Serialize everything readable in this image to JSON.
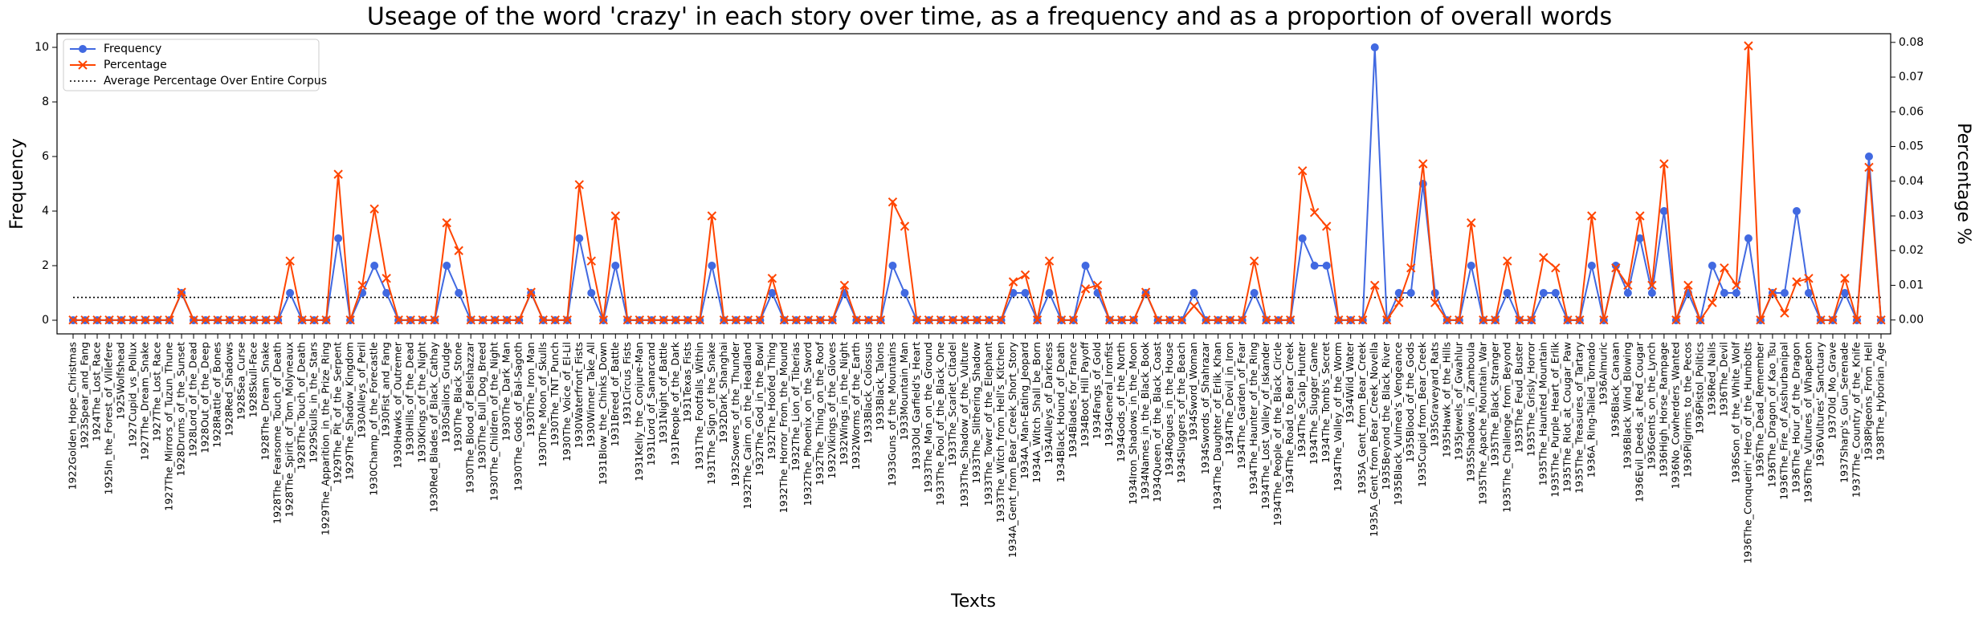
{
  "chart_data": {
    "type": "line",
    "title": "Useage of the word 'crazy' in each story over time, as a frequency and as a proportion of overall words",
    "xlabel": "Texts",
    "ylabel": "Frequency",
    "y2label": "Percentage %",
    "legend": "upper left",
    "categories": [
      "1922Golden_Hope_Christmas",
      "1923Spear_and_Fang",
      "1924The_Lost_Race",
      "1925In_the_Forest_of_Villefere",
      "1925Wolfshead",
      "1927Cupid_vs_Pollux",
      "1927The_Dream_Snake",
      "1927The_Lost_Race",
      "1927The_Mirrors_of_Tuzun_Thune",
      "1928Drums_of_the_Sunset",
      "1928Lord_of_the_Dead",
      "1928Out_of_the_Deep",
      "1928Rattle_of_Bones",
      "1928Red_Shadows",
      "1928Sea_Curse",
      "1928Skull-Face",
      "1928The_Dream_Snake",
      "1928The_Fearsome_Touch_of_Death",
      "1928The_Spirit_of_Tom_Molyneaux",
      "1928The_Touch_of_Death",
      "1929Skulls_in_the_Stars",
      "1929The_Apparition_in_the_Prize_Ring",
      "1929The_Pit_of_the_Serpent",
      "1929The_Shadow_Kingdom",
      "1930Alleys_of_Peril",
      "1930Champ_of_the_Forecastle",
      "1930Fist_and_Fang",
      "1930Hawks_of_Outremer",
      "1930Hills_of_the_Dead",
      "1930Kings_of_the_Night",
      "1930Red_Blades_of_Black_Cathay",
      "1930Sailors_Grudge",
      "1930The_Black_Stone",
      "1930The_Blood_of_Belshazzar",
      "1930The_Bull_Dog_Breed",
      "1930The_Children_of_the_Night",
      "1930The_Dark_Man",
      "1930The_Gods_of_Bal-Sagoth",
      "1930The_Iron_Man",
      "1930The_Moon_of_Skulls",
      "1930The_TNT_Punch",
      "1930The_Voice_of_El-Lil",
      "1930Waterfront_Fists",
      "1930Winner_Take_All",
      "1931Blow_the_Chinks_Down",
      "1931Breed_of_Battle",
      "1931Circus_Fists",
      "1931Kelly_the_Conjure-Man",
      "1931Lord_of_Samarcand",
      "1931Night_of_Battle",
      "1931People_of_the_Dark",
      "1931Texas_Fists",
      "1931The_Footfalls_Within",
      "1931The_Sign_of_the_Snake",
      "1932Dark_Shanghai",
      "1932Sowers_of_the_Thunder",
      "1932The_Cairn_on_the_Headland",
      "1932The_God_in_the_Bowl",
      "1932The_Hoofed_Thing",
      "1932The_Horror_From_the_Mound",
      "1932The_Lion_of_Tiberias",
      "1932The_Phoenix_on_the_Sword",
      "1932The_Thing_on_the_Roof",
      "1932Vikings_of_the_Gloves",
      "1932Wings_in_the_Night",
      "1932Worms_of_the_Earth",
      "1933Black_Colossus",
      "1933Black_Talons",
      "1933Guns_of_the_Mountains",
      "1933Mountain_Man",
      "1933Old_Garfield's_Heart",
      "1933The_Man_on_the_Ground",
      "1933The_Pool_of_the_Black_One",
      "1933The_Scarlet_Citadel",
      "1933The_Shadow_of_the_Vulture",
      "1933The_Slithering_Shadow",
      "1933The_Tower_of_the_Elephant",
      "1933The_Witch_from_Hell's_Kitchen",
      "1934A_Gent_from_Bear_Creek_Short_Story",
      "1934A_Man-Eating_Jeopard",
      "1934A_Witch_Shall_be_Born",
      "1934Alleys_of_Darkness",
      "1934Black_Hound_of_Death",
      "1934Blades_for_France",
      "1934Boot_Hill_Payoff",
      "1934Fangs_of_Gold",
      "1934General_Ironfist",
      "1934Gods_of_the_North",
      "1934Iron_Shadows_in_the_Moon",
      "1934Names_in_the_Black_Book",
      "1934Queen_of_the_Black_Coast",
      "1934Rogues_in_the_House",
      "1934Sluggers_of_the_Beach",
      "1934Sword_Woman",
      "1934Swords_of_Shahrazar",
      "1934The_Daughter_of_Erlik_Khan",
      "1934The_Devil_in_Iron",
      "1934The_Garden_of_Fear",
      "1934The_Haunter_of_the_Ring",
      "1934The_Lost_Valley_of_Iskander",
      "1934The_People_of_the_Black_Circle",
      "1934The_Road_to_Bear_Creek",
      "1934The_Scalp_Hunter",
      "1934The_Slugger_Game",
      "1934The_Tomb's_Secret",
      "1934The_Valley_of_the_Worm",
      "1934Wild_Water",
      "1935A_Gent_from_Bear_Creek",
      "1935A_Gent_from_Bear_Creek_Novella",
      "1935Beyond_the_Black_River",
      "1935Black_Vulmea's_Vengeance",
      "1935Blood_of_the_Gods",
      "1935Cupid_from_Bear_Creek",
      "1935Graveyard_Rats",
      "1935Hawk_of_the_Hills",
      "1935Jewels_of_Gwahlur",
      "1935Shadows_in_Zamboula",
      "1935The_Apache_Mountain_War",
      "1935The_Black_Stranger",
      "1935The_Challenge_from_Beyond",
      "1935The_Feud_Buster",
      "1935The_Grisly_Horror",
      "1935The_Haunted_Mountain",
      "1935The_Purple_Heart_of_Erlik",
      "1935The_Riot_at_Cougar_Paw",
      "1935The_Treasures_of_Tartary",
      "1936A_Ring-Tailed_Tornado",
      "1936Almuric",
      "1936Black_Canaan",
      "1936Black_Wind_Blowing",
      "1936Evil_Deeds_at_Red_Cougar",
      "1936Gents_on_the_Lynch",
      "1936High_Horse_Rampage",
      "1936No_Cowherders_Wanted",
      "1936Pilgrims_to_the_Pecos",
      "1936Pistol_Politics",
      "1936Red_Nails",
      "1936The_Devil",
      "1936Son_of_the_White_Wolf",
      "1936The_Conquerin'_Hero_of_the_Humbolts",
      "1936The_Dead_Remember",
      "1936The_Dragon_of_Kao_Tsu",
      "1936The_Fire_of_Asshurbanipal",
      "1936The_Hour_of_the_Dragon",
      "1936The_Vultures_of_Whapeton",
      "1936Vultures'_Sanctuary",
      "1937Old_Mo_Grave",
      "1937Sharp's_Gun_Serenade",
      "1937The_Country_of_the_Knife",
      "1938Pigeons_From_Hell",
      "1938The_Hyborian_Age"
    ],
    "series": [
      {
        "name": "Frequency",
        "color": "#4169e1",
        "marker": "circle",
        "axis": "y",
        "values": [
          0,
          0,
          0,
          0,
          0,
          0,
          0,
          0,
          0,
          1,
          0,
          0,
          0,
          0,
          0,
          0,
          0,
          0,
          1,
          0,
          0,
          0,
          3,
          0,
          1,
          2,
          1,
          0,
          0,
          0,
          0,
          2,
          1,
          0,
          0,
          0,
          0,
          0,
          1,
          0,
          0,
          0,
          3,
          1,
          0,
          2,
          0,
          0,
          0,
          0,
          0,
          0,
          0,
          2,
          0,
          0,
          0,
          0,
          1,
          0,
          0,
          0,
          0,
          0,
          1,
          0,
          0,
          0,
          2,
          1,
          0,
          0,
          0,
          0,
          0,
          0,
          0,
          0,
          1,
          1,
          0,
          1,
          0,
          0,
          2,
          1,
          0,
          0,
          0,
          1,
          0,
          0,
          0,
          1,
          0,
          0,
          0,
          0,
          1,
          0,
          0,
          0,
          3,
          2,
          2,
          0,
          0,
          0,
          10,
          0,
          1,
          1,
          5,
          1,
          0,
          0,
          2,
          0,
          0,
          1,
          0,
          0,
          1,
          1,
          0,
          0,
          2,
          0,
          2,
          1,
          3,
          1,
          4,
          0,
          1,
          0,
          2,
          1,
          1,
          3,
          0,
          1,
          1,
          4,
          1,
          0,
          0,
          1,
          0,
          6,
          0
        ]
      },
      {
        "name": "Percentage",
        "color": "#ff4500",
        "marker": "x",
        "axis": "y2",
        "values": [
          0,
          0,
          0,
          0,
          0,
          0,
          0,
          0,
          0,
          0.008,
          0,
          0,
          0,
          0,
          0,
          0,
          0,
          0,
          0.017,
          0,
          0,
          0,
          0.042,
          0,
          0.01,
          0.032,
          0.012,
          0,
          0,
          0,
          0,
          0.028,
          0.02,
          0,
          0,
          0,
          0,
          0,
          0.008,
          0,
          0,
          0,
          0.039,
          0.017,
          0,
          0.03,
          0,
          0,
          0,
          0,
          0,
          0,
          0,
          0.03,
          0,
          0,
          0,
          0,
          0.012,
          0,
          0,
          0,
          0,
          0,
          0.01,
          0,
          0,
          0,
          0.034,
          0.027,
          0,
          0,
          0,
          0,
          0,
          0,
          0,
          0,
          0.011,
          0.013,
          0,
          0.017,
          0,
          0,
          0.009,
          0.01,
          0,
          0,
          0,
          0.008,
          0,
          0,
          0,
          0.004,
          0,
          0,
          0,
          0,
          0.017,
          0,
          0,
          0,
          0.043,
          0.031,
          0.027,
          0,
          0,
          0,
          0.01,
          0,
          0.005,
          0.015,
          0.045,
          0.005,
          0,
          0,
          0.028,
          0,
          0,
          0.017,
          0,
          0,
          0.018,
          0.015,
          0,
          0,
          0.03,
          0,
          0.015,
          0.01,
          0.03,
          0.01,
          0.045,
          0,
          0.01,
          0,
          0.005,
          0.015,
          0.01,
          0.079,
          0,
          0.008,
          0.002,
          0.011,
          0.012,
          0,
          0,
          0.012,
          0,
          0.044,
          0
        ]
      }
    ],
    "reference_line": {
      "name": "Average Percentage Over Entire Corpus",
      "value": 0.0065,
      "axis": "y2",
      "color": "#000000",
      "style": "dotted"
    },
    "ylim": [
      -0.5,
      10.5
    ],
    "yticks": [
      0,
      2,
      4,
      6,
      8,
      10
    ],
    "y2lim": [
      -0.004,
      0.0825
    ],
    "y2ticks": [
      {
        "value": 0,
        "label": "0.00"
      },
      {
        "value": 0.01,
        "label": "0.01"
      },
      {
        "value": 0.02,
        "label": "0.02"
      },
      {
        "value": 0.03,
        "label": "0.03"
      },
      {
        "value": 0.04,
        "label": "0.04"
      },
      {
        "value": 0.05,
        "label": "0.05"
      },
      {
        "value": 0.06,
        "label": "0.06"
      },
      {
        "value": 0.07,
        "label": "0.07"
      },
      {
        "value": 0.08,
        "label": "0.08"
      }
    ],
    "grid": false
  }
}
